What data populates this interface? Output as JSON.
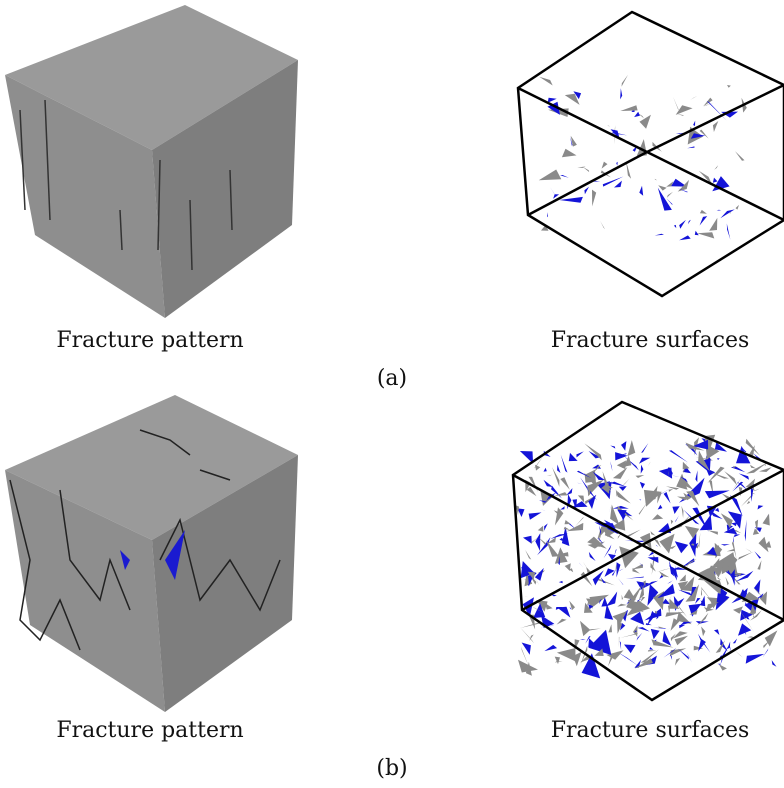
{
  "rows": [
    {
      "panels": [
        {
          "caption": "Fracture pattern"
        },
        {
          "caption": "Fracture surfaces"
        }
      ],
      "label": "(a)"
    },
    {
      "panels": [
        {
          "caption": "Fracture pattern"
        },
        {
          "caption": "Fracture surfaces"
        }
      ],
      "label": "(b)"
    }
  ]
}
